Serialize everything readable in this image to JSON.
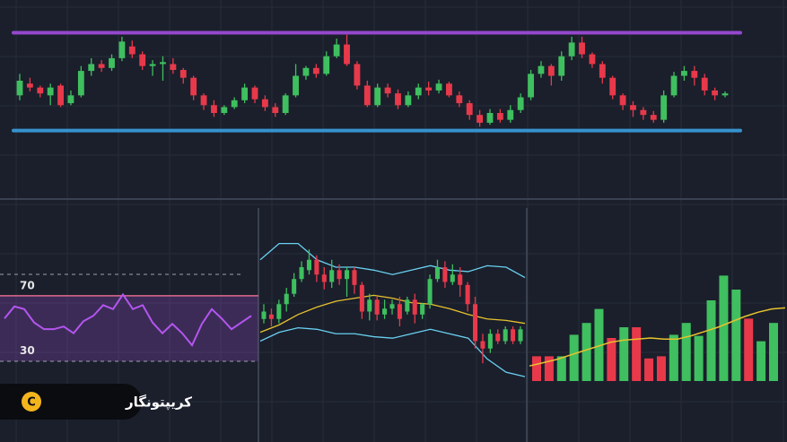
{
  "chart_data": [
    {
      "type": "candlestick",
      "ylim": [
        0,
        110
      ],
      "up_color": "#3fbf5f",
      "down_color": "#e8394b",
      "levels": [
        {
          "value": 104,
          "color": "#a24de0"
        },
        {
          "value": 4,
          "color": "#3a9fe0"
        }
      ],
      "candles": [
        [
          40,
          55,
          62,
          35
        ],
        [
          52,
          48,
          58,
          44
        ],
        [
          48,
          42,
          50,
          38
        ],
        [
          40,
          48,
          52,
          30
        ],
        [
          50,
          30,
          52,
          28
        ],
        [
          32,
          40,
          45,
          30
        ],
        [
          40,
          65,
          70,
          38
        ],
        [
          65,
          72,
          78,
          60
        ],
        [
          72,
          68,
          76,
          64
        ],
        [
          68,
          78,
          82,
          65
        ],
        [
          78,
          95,
          100,
          75
        ],
        [
          90,
          82,
          96,
          78
        ],
        [
          82,
          70,
          85,
          66
        ],
        [
          70,
          72,
          76,
          60
        ],
        [
          72,
          74,
          80,
          55
        ],
        [
          72,
          66,
          78,
          62
        ],
        [
          66,
          58,
          68,
          52
        ],
        [
          58,
          40,
          60,
          35
        ],
        [
          40,
          30,
          42,
          25
        ],
        [
          30,
          22,
          35,
          18
        ],
        [
          22,
          28,
          30,
          20
        ],
        [
          28,
          35,
          38,
          26
        ],
        [
          35,
          48,
          52,
          32
        ],
        [
          48,
          36,
          50,
          32
        ],
        [
          36,
          28,
          40,
          24
        ],
        [
          28,
          22,
          32,
          18
        ],
        [
          22,
          40,
          42,
          20
        ],
        [
          40,
          60,
          72,
          38
        ],
        [
          60,
          68,
          70,
          56
        ],
        [
          68,
          62,
          72,
          58
        ],
        [
          62,
          80,
          85,
          60
        ],
        [
          80,
          92,
          98,
          78
        ],
        [
          92,
          72,
          102,
          70
        ],
        [
          72,
          50,
          75,
          46
        ],
        [
          50,
          30,
          55,
          28
        ],
        [
          30,
          48,
          52,
          28
        ],
        [
          48,
          42,
          52,
          38
        ],
        [
          42,
          30,
          46,
          26
        ],
        [
          30,
          40,
          44,
          28
        ],
        [
          40,
          48,
          52,
          36
        ],
        [
          48,
          45,
          54,
          40
        ],
        [
          45,
          52,
          56,
          42
        ],
        [
          52,
          40,
          54,
          38
        ],
        [
          40,
          32,
          44,
          28
        ],
        [
          32,
          20,
          35,
          15
        ],
        [
          20,
          12,
          25,
          8
        ],
        [
          12,
          22,
          26,
          10
        ],
        [
          22,
          15,
          26,
          12
        ],
        [
          15,
          25,
          30,
          12
        ],
        [
          25,
          38,
          42,
          22
        ],
        [
          38,
          62,
          66,
          35
        ],
        [
          62,
          70,
          75,
          58
        ],
        [
          70,
          60,
          72,
          50
        ],
        [
          60,
          80,
          85,
          55
        ],
        [
          80,
          94,
          100,
          76
        ],
        [
          94,
          82,
          100,
          78
        ],
        [
          82,
          72,
          84,
          68
        ],
        [
          72,
          58,
          75,
          52
        ],
        [
          58,
          40,
          60,
          36
        ],
        [
          40,
          30,
          42,
          25
        ],
        [
          30,
          25,
          34,
          18
        ],
        [
          25,
          20,
          28,
          15
        ],
        [
          20,
          15,
          24,
          12
        ],
        [
          15,
          40,
          45,
          12
        ],
        [
          40,
          60,
          64,
          38
        ],
        [
          60,
          65,
          70,
          55
        ],
        [
          65,
          58,
          70,
          50
        ],
        [
          58,
          45,
          62,
          40
        ],
        [
          45,
          40,
          48,
          35
        ],
        [
          40,
          42,
          44,
          38
        ]
      ]
    },
    {
      "type": "line",
      "ylim": [
        21,
        86
      ],
      "yticks": [
        70,
        30
      ],
      "color": "#b455f0",
      "band_color": "#e06a8e",
      "values": [
        53,
        62,
        60,
        50,
        45,
        45,
        47,
        42,
        51,
        55,
        63,
        60,
        71,
        60,
        63,
        50,
        42,
        49,
        42,
        33,
        49,
        60,
        53,
        45,
        50,
        55
      ]
    },
    {
      "type": "candlestick",
      "ylim": [
        0,
        100
      ],
      "up_color": "#3fbf5f",
      "down_color": "#e8394b",
      "candles": [
        [
          45,
          50,
          55,
          42
        ],
        [
          48,
          45,
          52,
          40
        ],
        [
          45,
          55,
          58,
          42
        ],
        [
          55,
          62,
          66,
          50
        ],
        [
          62,
          72,
          76,
          60
        ],
        [
          72,
          80,
          84,
          70
        ],
        [
          78,
          85,
          92,
          75
        ],
        [
          85,
          75,
          88,
          70
        ],
        [
          75,
          70,
          80,
          65
        ],
        [
          70,
          78,
          85,
          66
        ],
        [
          78,
          72,
          82,
          68
        ],
        [
          72,
          78,
          80,
          60
        ],
        [
          78,
          68,
          80,
          62
        ],
        [
          68,
          50,
          70,
          45
        ],
        [
          50,
          58,
          62,
          44
        ],
        [
          58,
          48,
          60,
          44
        ],
        [
          48,
          52,
          58,
          45
        ],
        [
          52,
          55,
          58,
          48
        ],
        [
          55,
          45,
          60,
          40
        ],
        [
          50,
          58,
          60,
          48
        ],
        [
          58,
          48,
          62,
          42
        ],
        [
          48,
          55,
          56,
          45
        ],
        [
          55,
          72,
          75,
          52
        ],
        [
          72,
          80,
          85,
          70
        ],
        [
          80,
          70,
          84,
          66
        ],
        [
          70,
          75,
          82,
          68
        ],
        [
          75,
          68,
          80,
          60
        ],
        [
          68,
          55,
          70,
          50
        ],
        [
          55,
          30,
          60,
          25
        ],
        [
          30,
          25,
          35,
          15
        ],
        [
          25,
          35,
          38,
          22
        ],
        [
          35,
          30,
          38,
          28
        ],
        [
          30,
          38,
          40,
          28
        ],
        [
          38,
          30,
          40,
          28
        ],
        [
          30,
          38,
          40,
          28
        ]
      ],
      "series": [
        {
          "color": "#6ad0f0",
          "values": [
            85,
            96,
            96,
            85,
            80,
            80,
            78,
            75,
            78,
            81,
            78,
            77,
            81,
            80,
            73
          ]
        },
        {
          "color": "#6ad0f0",
          "values": [
            30,
            36,
            39,
            38,
            35,
            35,
            33,
            32,
            35,
            38,
            35,
            32,
            18,
            9,
            6
          ]
        },
        {
          "color": "#e8c22e",
          "values": [
            36,
            41,
            48,
            53,
            57,
            59,
            61,
            59,
            56,
            55,
            52,
            48,
            45,
            44,
            42
          ]
        }
      ]
    },
    {
      "type": "bar",
      "ylim": [
        0,
        100
      ],
      "values": [
        23,
        23,
        23,
        43,
        54,
        67,
        40,
        50,
        50,
        21,
        23,
        43,
        54,
        42,
        75,
        98,
        85,
        58,
        37,
        54
      ],
      "colors": [
        "#e8394b",
        "#e8394b",
        "#3fbf5f",
        "#3fbf5f",
        "#3fbf5f",
        "#3fbf5f",
        "#e8394b",
        "#3fbf5f",
        "#e8394b",
        "#e8394b",
        "#e8394b",
        "#3fbf5f",
        "#3fbf5f",
        "#3fbf5f",
        "#3fbf5f",
        "#3fbf5f",
        "#3fbf5f",
        "#e8394b",
        "#3fbf5f",
        "#3fbf5f"
      ],
      "trend": {
        "color": "#e8c22e",
        "values": [
          14,
          17,
          20,
          24,
          28,
          32,
          36,
          38,
          39,
          40,
          39,
          39,
          42,
          46,
          50,
          55,
          60,
          64,
          67,
          68
        ]
      }
    }
  ],
  "brand": "کریپتونگار"
}
